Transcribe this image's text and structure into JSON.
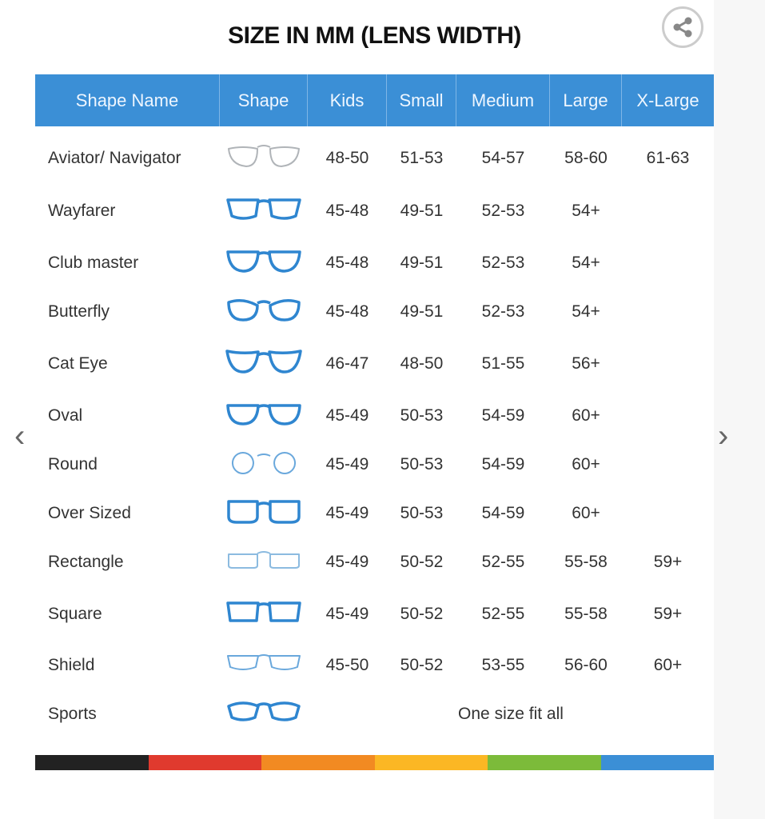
{
  "title": "SIZE IN MM (LENS WIDTH)",
  "share_icon": "share-icon",
  "columns": [
    "Shape Name",
    "Shape",
    "Kids",
    "Small",
    "Medium",
    "Large",
    "X-Large"
  ],
  "rows": [
    {
      "name": "Aviator/ Navigator",
      "icon": "aviator",
      "color": "#b0b4b8",
      "sizes": [
        "48-50",
        "51-53",
        "54-57",
        "58-60",
        "61-63"
      ]
    },
    {
      "name": "Wayfarer",
      "icon": "wayfarer",
      "color": "#2f86d0",
      "sizes": [
        "45-48",
        "49-51",
        "52-53",
        "54+",
        ""
      ]
    },
    {
      "name": "Club master",
      "icon": "clubmaster",
      "color": "#2f86d0",
      "sizes": [
        "45-48",
        "49-51",
        "52-53",
        "54+",
        ""
      ]
    },
    {
      "name": "Butterfly",
      "icon": "butterfly",
      "color": "#2f86d0",
      "sizes": [
        "45-48",
        "49-51",
        "52-53",
        "54+",
        ""
      ]
    },
    {
      "name": "Cat Eye",
      "icon": "cateye",
      "color": "#2f86d0",
      "sizes": [
        "46-47",
        "48-50",
        "51-55",
        "56+",
        ""
      ]
    },
    {
      "name": "Oval",
      "icon": "oval",
      "color": "#2f86d0",
      "sizes": [
        "45-49",
        "50-53",
        "54-59",
        "60+",
        ""
      ]
    },
    {
      "name": "Round",
      "icon": "round",
      "color": "#6aa8dc",
      "sizes": [
        "45-49",
        "50-53",
        "54-59",
        "60+",
        ""
      ]
    },
    {
      "name": "Over Sized",
      "icon": "oversized",
      "color": "#2f86d0",
      "sizes": [
        "45-49",
        "50-53",
        "54-59",
        "60+",
        ""
      ]
    },
    {
      "name": "Rectangle",
      "icon": "rectangle",
      "color": "#8cbbe0",
      "sizes": [
        "45-49",
        "50-52",
        "52-55",
        "55-58",
        "59+"
      ]
    },
    {
      "name": "Square",
      "icon": "square",
      "color": "#2f86d0",
      "sizes": [
        "45-49",
        "50-52",
        "52-55",
        "55-58",
        "59+"
      ]
    },
    {
      "name": "Shield",
      "icon": "shield",
      "color": "#6aa8dc",
      "sizes": [
        "45-50",
        "50-52",
        "53-55",
        "56-60",
        "60+"
      ]
    },
    {
      "name": "Sports",
      "icon": "sports",
      "color": "#2f86d0",
      "sizes": [],
      "span_text": "One size fit all"
    }
  ],
  "color_bar": [
    "#222222",
    "#e03a2e",
    "#f28a22",
    "#fbb724",
    "#7cbb3a",
    "#3b8fd6"
  ],
  "nav": {
    "prev_icon": "chevron-left-icon",
    "next_icon": "chevron-right-icon"
  },
  "accent": "#3b8fd6"
}
